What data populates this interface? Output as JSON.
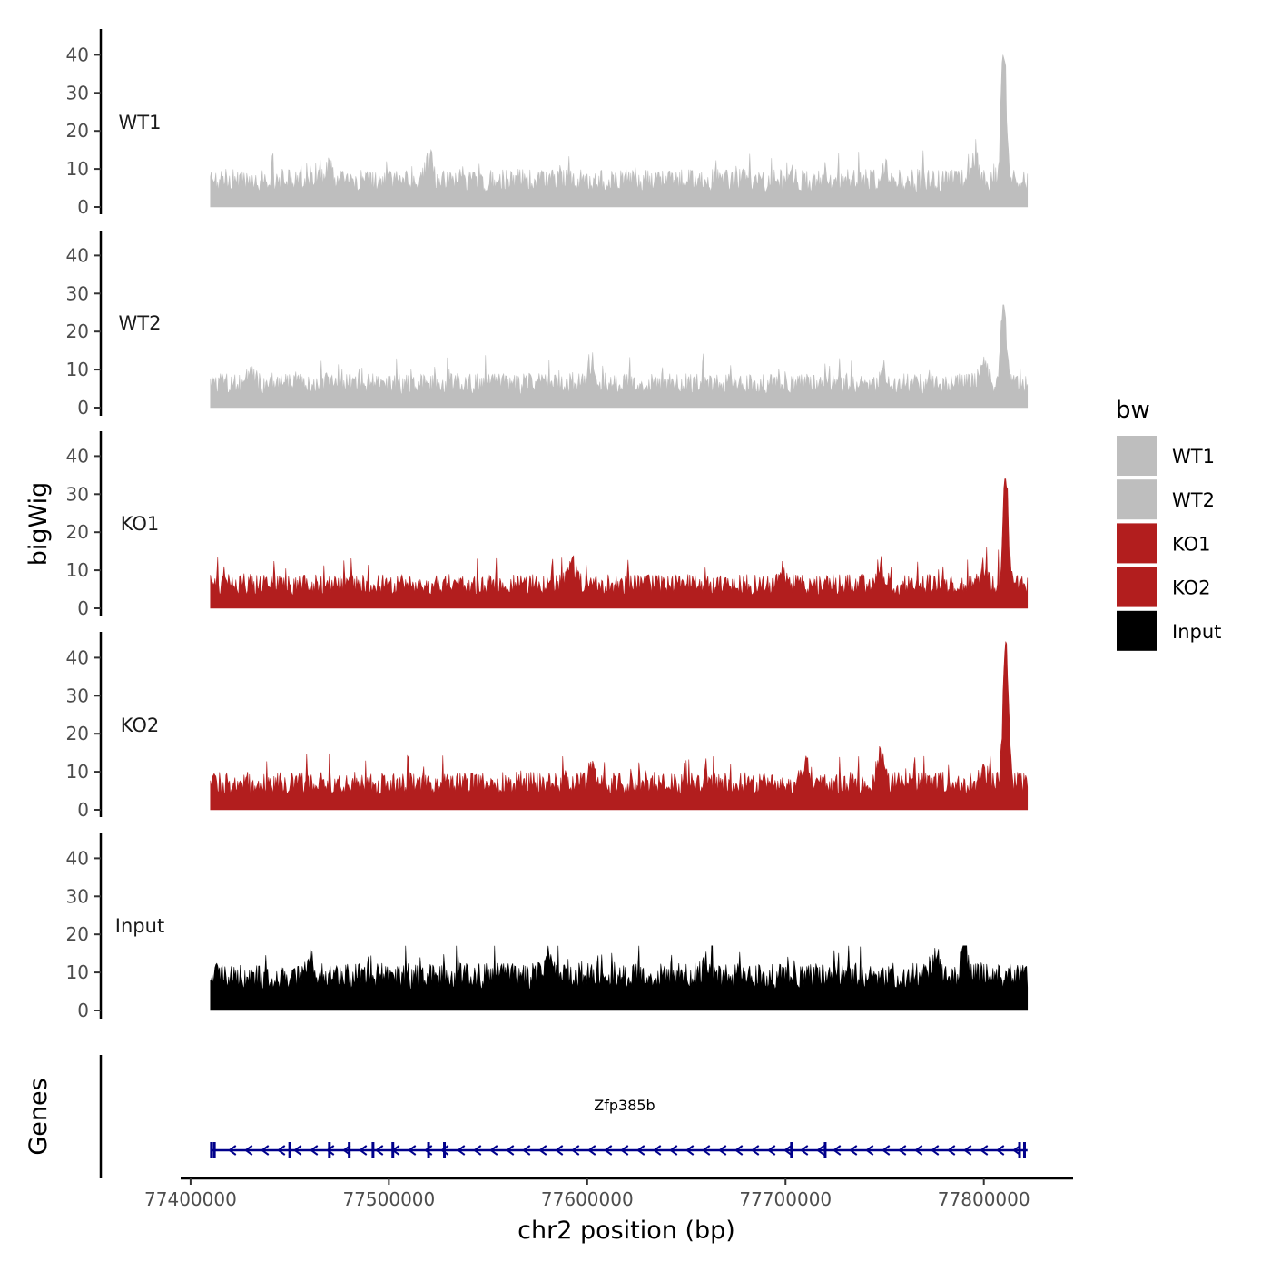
{
  "chart_data": {
    "type": "area",
    "title": "",
    "xlabel": "chr2 position (bp)",
    "ylabel": "bigWig",
    "genes_label": "Genes",
    "xlim": [
      77395000,
      77845000
    ],
    "data_range": [
      77410000,
      77822000
    ],
    "x_ticks": [
      77400000,
      77500000,
      77600000,
      77700000,
      77800000
    ],
    "x_tick_labels": [
      "77400000",
      "77500000",
      "77600000",
      "77700000",
      "77800000"
    ],
    "ylim": [
      0,
      45
    ],
    "y_ticks": [
      0,
      10,
      20,
      30,
      40
    ],
    "y_tick_labels": [
      "0",
      "10",
      "20",
      "30",
      "40"
    ],
    "series": [
      {
        "name": "WT1",
        "color": "#bebebe",
        "baseline": 4,
        "noise": 6,
        "spikes": 7,
        "peak_pos": 77810000,
        "peak_height": 40,
        "bumps": [
          {
            "pos": 77470000,
            "height": 12
          },
          {
            "pos": 77520000,
            "height": 13
          },
          {
            "pos": 77750000,
            "height": 11
          },
          {
            "pos": 77795000,
            "height": 13
          }
        ]
      },
      {
        "name": "WT2",
        "color": "#bebebe",
        "baseline": 3.5,
        "noise": 5.5,
        "spikes": 7,
        "peak_pos": 77810000,
        "peak_height": 27,
        "bumps": [
          {
            "pos": 77430000,
            "height": 9
          },
          {
            "pos": 77602000,
            "height": 11
          },
          {
            "pos": 77750000,
            "height": 10
          },
          {
            "pos": 77800000,
            "height": 13
          }
        ]
      },
      {
        "name": "KO1",
        "color": "#b21e1e",
        "baseline": 3.5,
        "noise": 5.5,
        "spikes": 7,
        "peak_pos": 77811000,
        "peak_height": 34,
        "bumps": [
          {
            "pos": 77592000,
            "height": 13
          },
          {
            "pos": 77602000,
            "height": 8
          },
          {
            "pos": 77700000,
            "height": 9
          },
          {
            "pos": 77748000,
            "height": 12
          },
          {
            "pos": 77800000,
            "height": 11
          }
        ]
      },
      {
        "name": "KO2",
        "color": "#b21e1e",
        "baseline": 4,
        "noise": 6,
        "spikes": 7,
        "peak_pos": 77811000,
        "peak_height": 45,
        "bumps": [
          {
            "pos": 77602000,
            "height": 12
          },
          {
            "pos": 77710000,
            "height": 13
          },
          {
            "pos": 77748000,
            "height": 15
          },
          {
            "pos": 77760000,
            "height": 9
          },
          {
            "pos": 77800000,
            "height": 11
          }
        ]
      },
      {
        "name": "Input",
        "color": "#000000",
        "baseline": 5.5,
        "noise": 7,
        "spikes": 9,
        "peak_pos": 77790000,
        "peak_height": 17,
        "bumps": [
          {
            "pos": 77460000,
            "height": 15
          },
          {
            "pos": 77580000,
            "height": 14
          },
          {
            "pos": 77660000,
            "height": 13
          },
          {
            "pos": 77775000,
            "height": 15
          }
        ]
      }
    ],
    "legend": {
      "title": "bw",
      "position": "right",
      "items": [
        {
          "label": "WT1",
          "color": "#bebebe"
        },
        {
          "label": "WT2",
          "color": "#bebebe"
        },
        {
          "label": "KO1",
          "color": "#b21e1e"
        },
        {
          "label": "KO2",
          "color": "#b21e1e"
        },
        {
          "label": "Input",
          "color": "#000000"
        }
      ]
    },
    "gene": {
      "name": "Zfp385b",
      "color": "#00008b",
      "strand": "-",
      "start": 77410000,
      "end": 77822000,
      "exons": [
        77410500,
        77412000,
        77450000,
        77470000,
        77480000,
        77492000,
        77502000,
        77520000,
        77528000,
        77703000,
        77720000,
        77818000,
        77820500
      ]
    }
  }
}
